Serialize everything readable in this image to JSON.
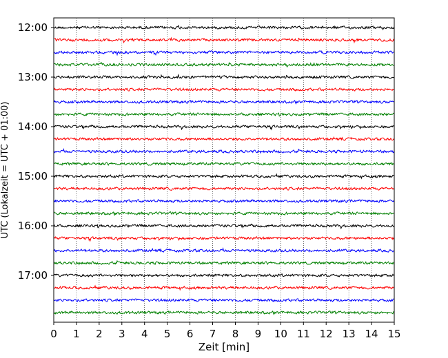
{
  "chart_data": {
    "type": "line",
    "title": "",
    "xlabel": "Zeit  [min]",
    "ylabel": "UTC (Lokalzeit = UTC + 01:00)",
    "xlim": [
      0,
      15
    ],
    "x_ticks": [
      0,
      1,
      2,
      3,
      4,
      5,
      6,
      7,
      8,
      9,
      10,
      11,
      12,
      13,
      14,
      15
    ],
    "x_tick_labels": [
      "0",
      "1",
      "2",
      "3",
      "4",
      "5",
      "6",
      "7",
      "8",
      "9",
      "10",
      "11",
      "12",
      "13",
      "14",
      "15"
    ],
    "y_tick_labels": [
      "12:00",
      "13:00",
      "14:00",
      "15:00",
      "16:00",
      "17:00"
    ],
    "trace_interval_min": 15,
    "first_trace": "12:00",
    "trace_count": 24,
    "trace_colors": [
      "#000000",
      "#ff0000",
      "#0000ff",
      "#008000"
    ],
    "grid": "vertical-dotted"
  }
}
